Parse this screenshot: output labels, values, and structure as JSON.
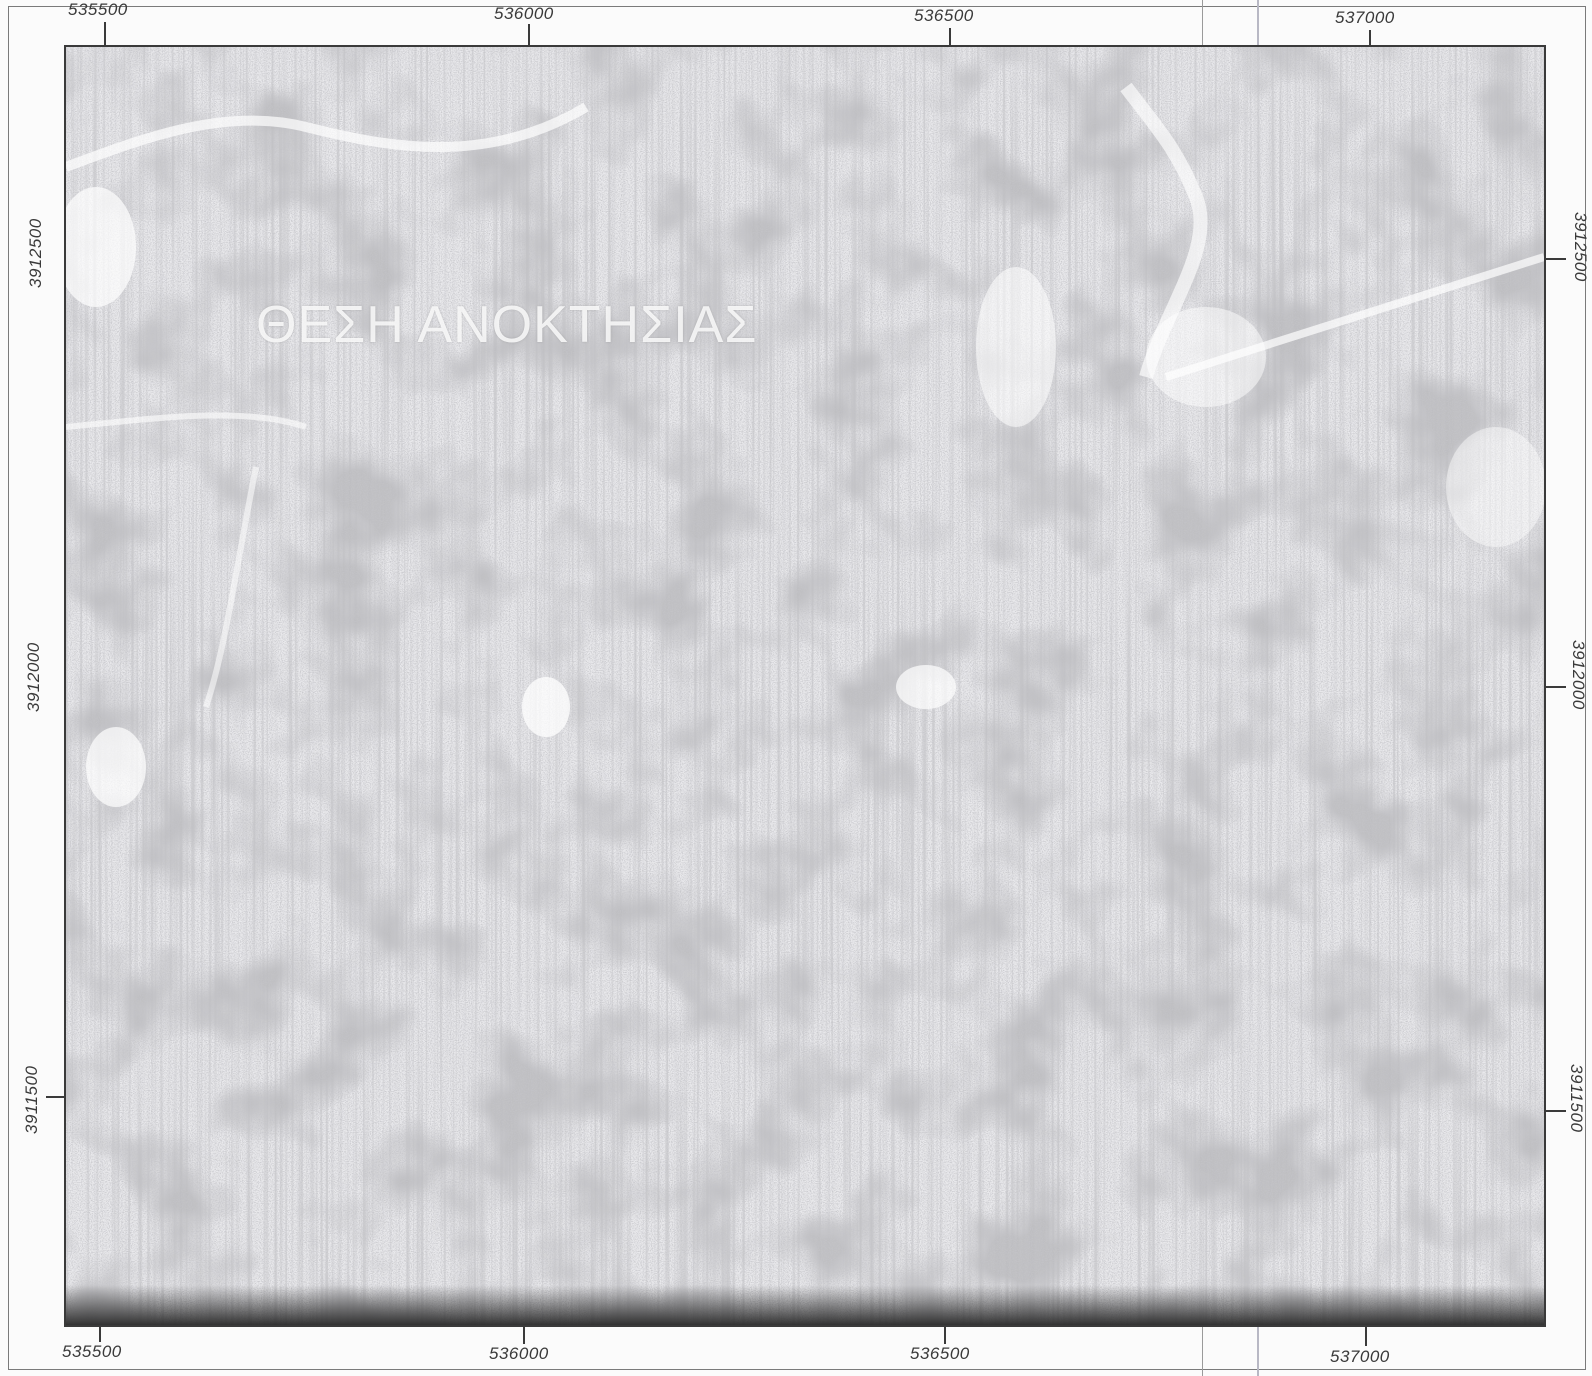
{
  "map": {
    "place_label": "ΘΕΣΗ ΑΝΟΚΤΗΣΙΑΣ"
  },
  "axes": {
    "top_x_ticks": [
      "535500",
      "536000",
      "536500",
      "537000"
    ],
    "bottom_x_ticks": [
      "535500",
      "536000",
      "536500",
      "537000"
    ],
    "left_y_ticks": [
      "3912500",
      "3912000",
      "3911500"
    ],
    "right_y_ticks": [
      "3912500",
      "3912000",
      "3911500"
    ]
  },
  "colors": {
    "frame": "#3a3a3a",
    "background": "#e6e6e8",
    "speckle": "#8c8c95"
  }
}
